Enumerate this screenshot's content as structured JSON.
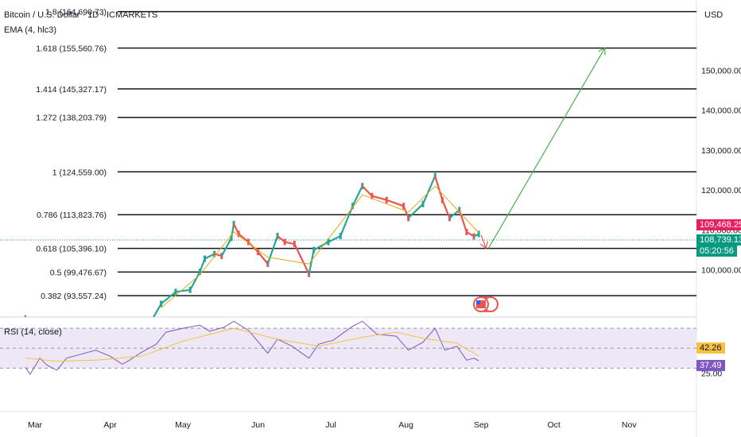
{
  "header": {
    "symbol_title": "Bitcoin / U.S. Dollar · 1D · ICMARKETS",
    "indicator": "EMA (4, hlc3)",
    "currency": "USD"
  },
  "rsi_title": "RSI (14, close)",
  "colors": {
    "up": "#26a69a",
    "down": "#ef5350",
    "ema": "#e6a817",
    "rsi": "#7e57c2",
    "rsi_ma": "#f5c242",
    "projection": "#4caf50",
    "down_arrow": "#ef5350",
    "price_label": "#e91e63",
    "current_label": "#089981",
    "rsi_band": "#ede7f6"
  },
  "chart_data": [
    {
      "type": "candlestick",
      "title": "Bitcoin / U.S. Dollar · 1D · ICMARKETS",
      "ylabel": "USD",
      "ylim": [
        88200,
        166000
      ],
      "x_ticks": [
        "Mar",
        "Apr",
        "May",
        "Jun",
        "Jul",
        "Aug",
        "Sep",
        "Oct",
        "Nov"
      ],
      "y_ticks": [
        "100,000.00",
        "110,000.00",
        "120,000.00",
        "130,000.00",
        "140,000.00",
        "150,000.00"
      ],
      "y_tick_values": [
        100000,
        110000,
        120000,
        130000,
        140000,
        150000
      ],
      "fib_levels": [
        {
          "ratio": "1.8",
          "price": 164690.73,
          "label": "1.8 (164,690.73)"
        },
        {
          "ratio": "1.618",
          "price": 155560.76,
          "label": "1.618 (155,560.76)"
        },
        {
          "ratio": "1.414",
          "price": 145327.17,
          "label": "1.414 (145,327.17)"
        },
        {
          "ratio": "1.272",
          "price": 138203.79,
          "label": "1.272 (138,203.79)"
        },
        {
          "ratio": "1",
          "price": 124559.0,
          "label": "1 (124,559.00)"
        },
        {
          "ratio": "0.786",
          "price": 113823.76,
          "label": "0.786 (113,823.76)"
        },
        {
          "ratio": "0.618",
          "price": 105396.1,
          "label": "0.618 (105,396.10)"
        },
        {
          "ratio": "0.5",
          "price": 99476.67,
          "label": "0.5 (99,476.67)"
        },
        {
          "ratio": "0.382",
          "price": 93557.24,
          "label": "0.382 (93,557.24)"
        }
      ],
      "price_labels": {
        "last_price": "109,468.25",
        "current_price": "108,739.13",
        "countdown": "05:20:56"
      },
      "close_path": [
        {
          "date": "2025-02-25",
          "close": 88500
        },
        {
          "date": "2025-02-27",
          "close": 84500
        },
        {
          "date": "2025-03-03",
          "close": 86000
        },
        {
          "date": "2025-03-10",
          "close": 80000
        },
        {
          "date": "2025-03-20",
          "close": 84000
        },
        {
          "date": "2025-04-01",
          "close": 85000
        },
        {
          "date": "2025-04-08",
          "close": 76500
        },
        {
          "date": "2025-04-22",
          "close": 91500
        },
        {
          "date": "2025-04-28",
          "close": 94500
        },
        {
          "date": "2025-05-04",
          "close": 95000
        },
        {
          "date": "2025-05-08",
          "close": 99500
        },
        {
          "date": "2025-05-10",
          "close": 102800
        },
        {
          "date": "2025-05-14",
          "close": 104000
        },
        {
          "date": "2025-05-17",
          "close": 103500
        },
        {
          "date": "2025-05-21",
          "close": 108000
        },
        {
          "date": "2025-05-22",
          "close": 111500
        },
        {
          "date": "2025-05-24",
          "close": 109000
        },
        {
          "date": "2025-05-28",
          "close": 107000
        },
        {
          "date": "2025-06-01",
          "close": 104500
        },
        {
          "date": "2025-06-05",
          "close": 101500
        },
        {
          "date": "2025-06-09",
          "close": 108500
        },
        {
          "date": "2025-06-12",
          "close": 107000
        },
        {
          "date": "2025-06-16",
          "close": 106500
        },
        {
          "date": "2025-06-22",
          "close": 99000
        },
        {
          "date": "2025-06-24",
          "close": 105000
        },
        {
          "date": "2025-06-30",
          "close": 107000
        },
        {
          "date": "2025-07-05",
          "close": 108500
        },
        {
          "date": "2025-07-10",
          "close": 116000
        },
        {
          "date": "2025-07-14",
          "close": 121000
        },
        {
          "date": "2025-07-18",
          "close": 118500
        },
        {
          "date": "2025-07-24",
          "close": 117500
        },
        {
          "date": "2025-07-31",
          "close": 116000
        },
        {
          "date": "2025-08-02",
          "close": 113000
        },
        {
          "date": "2025-08-08",
          "close": 116500
        },
        {
          "date": "2025-08-13",
          "close": 123500
        },
        {
          "date": "2025-08-16",
          "close": 117500
        },
        {
          "date": "2025-08-19",
          "close": 113000
        },
        {
          "date": "2025-08-23",
          "close": 115000
        },
        {
          "date": "2025-08-26",
          "close": 109500
        },
        {
          "date": "2025-08-29",
          "close": 108400
        },
        {
          "date": "2025-08-31",
          "close": 109000
        }
      ],
      "ema_path": [
        {
          "date": "2025-04-22",
          "value": 90500
        },
        {
          "date": "2025-05-08",
          "value": 98800
        },
        {
          "date": "2025-05-22",
          "value": 109500
        },
        {
          "date": "2025-06-05",
          "value": 103200
        },
        {
          "date": "2025-06-22",
          "value": 101500
        },
        {
          "date": "2025-07-14",
          "value": 118800
        },
        {
          "date": "2025-08-02",
          "value": 114500
        },
        {
          "date": "2025-08-13",
          "value": 121000
        },
        {
          "date": "2025-08-31",
          "value": 109300
        }
      ],
      "projection_arrow": {
        "from": {
          "date": "2025-09-04",
          "price": 105400
        },
        "to": {
          "date": "2025-10-22",
          "price": 155560.76
        }
      },
      "down_arrow": {
        "from": {
          "date": "2025-09-01",
          "price": 108700
        },
        "to": {
          "date": "2025-09-03",
          "price": 105396.1
        }
      }
    },
    {
      "type": "line",
      "title": "RSI (14, close)",
      "ylim": [
        20,
        78
      ],
      "y_ticks": [
        "25.00"
      ],
      "levels": [
        30,
        50,
        70
      ],
      "value_labels": {
        "rsi_ma": "42.26",
        "rsi": "37.49"
      },
      "series": [
        {
          "values": [
            {
              "date": "2025-02-25",
              "value": 31
            },
            {
              "date": "2025-02-27",
              "value": 24
            },
            {
              "date": "2025-03-03",
              "value": 40
            },
            {
              "date": "2025-03-06",
              "value": 33
            },
            {
              "date": "2025-03-10",
              "value": 28
            },
            {
              "date": "2025-03-14",
              "value": 40
            },
            {
              "date": "2025-03-20",
              "value": 44
            },
            {
              "date": "2025-03-26",
              "value": 48
            },
            {
              "date": "2025-04-01",
              "value": 42
            },
            {
              "date": "2025-04-06",
              "value": 34
            },
            {
              "date": "2025-04-09",
              "value": 38
            },
            {
              "date": "2025-04-14",
              "value": 46
            },
            {
              "date": "2025-04-20",
              "value": 54
            },
            {
              "date": "2025-04-24",
              "value": 66
            },
            {
              "date": "2025-05-01",
              "value": 70
            },
            {
              "date": "2025-05-08",
              "value": 73
            },
            {
              "date": "2025-05-12",
              "value": 67
            },
            {
              "date": "2025-05-18",
              "value": 71
            },
            {
              "date": "2025-05-22",
              "value": 77
            },
            {
              "date": "2025-05-28",
              "value": 68
            },
            {
              "date": "2025-06-05",
              "value": 45
            },
            {
              "date": "2025-06-09",
              "value": 59
            },
            {
              "date": "2025-06-15",
              "value": 52
            },
            {
              "date": "2025-06-22",
              "value": 40
            },
            {
              "date": "2025-06-26",
              "value": 54
            },
            {
              "date": "2025-07-02",
              "value": 58
            },
            {
              "date": "2025-07-10",
              "value": 72
            },
            {
              "date": "2025-07-14",
              "value": 77
            },
            {
              "date": "2025-07-20",
              "value": 64
            },
            {
              "date": "2025-07-28",
              "value": 62
            },
            {
              "date": "2025-08-02",
              "value": 48
            },
            {
              "date": "2025-08-08",
              "value": 56
            },
            {
              "date": "2025-08-13",
              "value": 70
            },
            {
              "date": "2025-08-17",
              "value": 48
            },
            {
              "date": "2025-08-22",
              "value": 52
            },
            {
              "date": "2025-08-26",
              "value": 38
            },
            {
              "date": "2025-08-29",
              "value": 40
            },
            {
              "date": "2025-08-31",
              "value": 37.49
            }
          ]
        },
        {
          "values": [
            {
              "date": "2025-02-25",
              "value": 40
            },
            {
              "date": "2025-03-10",
              "value": 37
            },
            {
              "date": "2025-03-26",
              "value": 38
            },
            {
              "date": "2025-04-14",
              "value": 42
            },
            {
              "date": "2025-05-01",
              "value": 57
            },
            {
              "date": "2025-05-22",
              "value": 70
            },
            {
              "date": "2025-06-09",
              "value": 59
            },
            {
              "date": "2025-06-26",
              "value": 52
            },
            {
              "date": "2025-07-14",
              "value": 61
            },
            {
              "date": "2025-07-28",
              "value": 66
            },
            {
              "date": "2025-08-08",
              "value": 60
            },
            {
              "date": "2025-08-22",
              "value": 55
            },
            {
              "date": "2025-08-31",
              "value": 42.26
            }
          ]
        }
      ]
    }
  ]
}
